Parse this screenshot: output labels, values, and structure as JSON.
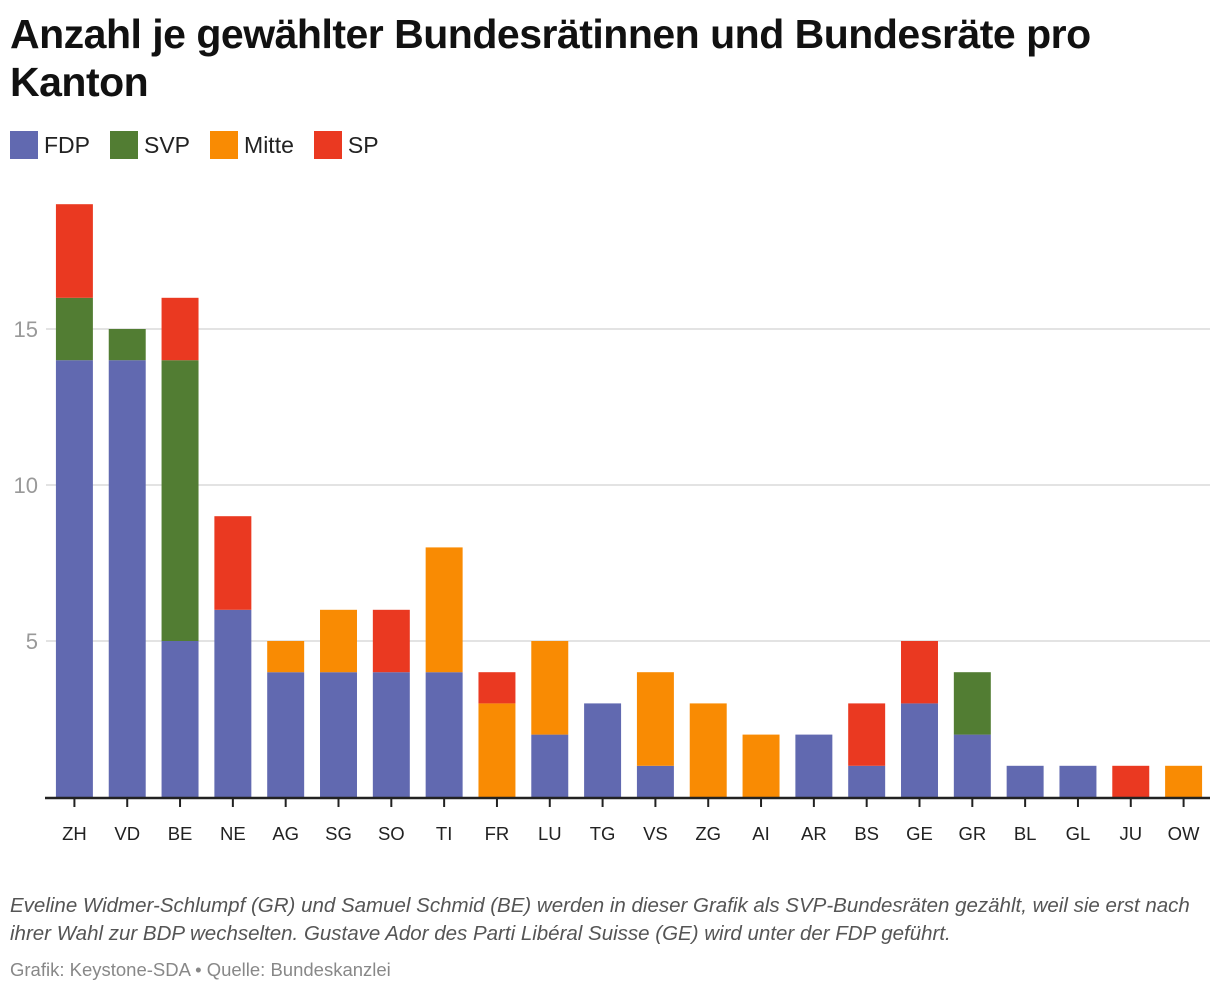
{
  "header": {
    "title": "Anzahl je gewählter Bundesrätinnen und Bundesräte pro Kanton"
  },
  "chart_data": {
    "type": "bar",
    "stacked": true,
    "title": "Anzahl je gewählter Bundesrätinnen und Bundesräte pro Kanton",
    "xlabel": "",
    "ylabel": "",
    "ylim": [
      0,
      19
    ],
    "yticks": [
      5,
      10,
      15
    ],
    "grid": true,
    "legend_position": "top-left",
    "categories": [
      "ZH",
      "VD",
      "BE",
      "NE",
      "AG",
      "SG",
      "SO",
      "TI",
      "FR",
      "LU",
      "TG",
      "VS",
      "ZG",
      "AI",
      "AR",
      "BS",
      "GE",
      "GR",
      "BL",
      "GL",
      "JU",
      "OW"
    ],
    "series": [
      {
        "name": "FDP",
        "color": "#6169b0",
        "values": [
          14,
          14,
          5,
          6,
          4,
          4,
          4,
          4,
          0,
          2,
          3,
          1,
          0,
          0,
          2,
          1,
          3,
          2,
          1,
          1,
          0,
          0
        ]
      },
      {
        "name": "SVP",
        "color": "#527d33",
        "values": [
          2,
          1,
          9,
          0,
          0,
          0,
          0,
          0,
          0,
          0,
          0,
          0,
          0,
          0,
          0,
          0,
          0,
          2,
          0,
          0,
          0,
          0
        ]
      },
      {
        "name": "Mitte",
        "color": "#f98b03",
        "values": [
          0,
          0,
          0,
          0,
          1,
          2,
          0,
          4,
          3,
          3,
          0,
          3,
          3,
          2,
          0,
          0,
          0,
          0,
          0,
          0,
          0,
          1
        ]
      },
      {
        "name": "SP",
        "color": "#ea3921",
        "values": [
          3,
          0,
          2,
          3,
          0,
          0,
          2,
          0,
          1,
          0,
          0,
          0,
          0,
          0,
          0,
          2,
          2,
          0,
          0,
          0,
          1,
          0
        ]
      }
    ]
  },
  "footer": {
    "note": "Eveline Widmer-Schlumpf (GR) und Samuel Schmid (BE) werden in dieser Grafik als SVP-Bundesräten gezählt, weil sie erst nach ihrer Wahl zur BDP wechselten. Gustave Ador des Parti Libéral Suisse (GE) wird unter der FDP geführt.",
    "source": "Grafik: Keystone-SDA • Quelle: Bundeskanzlei"
  }
}
